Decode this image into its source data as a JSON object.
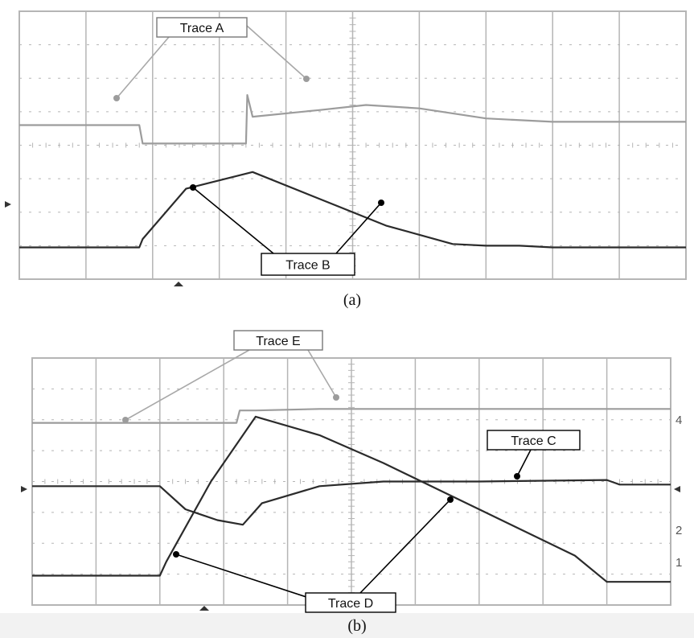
{
  "figure": {
    "caption_a": "(a)",
    "caption_b": "(b)"
  },
  "colors": {
    "grid": "#b5b5b5",
    "dark_trace": "#2b2b2b",
    "light_trace": "#9c9c9c",
    "callout_line": "#000000",
    "light_callout_line": "#a8a8a8"
  },
  "chart_data": [
    {
      "type": "line",
      "panel": "(a)",
      "grid": true,
      "grid_divisions": [
        10,
        8
      ],
      "series": [
        {
          "name": "Trace A",
          "shade": "light",
          "x": [
            0,
            1.8,
            1.85,
            3.4,
            3.42,
            3.5,
            4.5,
            5.2,
            6,
            7,
            8,
            9,
            10
          ],
          "y": [
            4.6,
            4.6,
            4.05,
            4.05,
            5.5,
            4.85,
            5.05,
            5.2,
            5.1,
            4.8,
            4.7,
            4.7,
            4.7
          ]
        },
        {
          "name": "Trace B",
          "shade": "dark",
          "x": [
            0,
            1.8,
            1.85,
            2.5,
            3.5,
            4.5,
            5.5,
            6.5,
            7,
            7.5,
            8,
            10
          ],
          "y": [
            0.95,
            0.95,
            1.2,
            2.7,
            3.2,
            2.4,
            1.6,
            1.05,
            1.0,
            1.0,
            0.95,
            0.95
          ]
        }
      ]
    },
    {
      "type": "line",
      "panel": "(b)",
      "grid": true,
      "grid_divisions": [
        10,
        8
      ],
      "channel_labels": [
        "4",
        "2",
        "1"
      ],
      "series": [
        {
          "name": "Trace E",
          "shade": "light",
          "x": [
            0,
            3.2,
            3.25,
            3.5,
            4.5,
            10
          ],
          "y": [
            5.9,
            5.9,
            6.3,
            6.3,
            6.35,
            6.35
          ]
        },
        {
          "name": "Trace C",
          "shade": "dark",
          "x": [
            0,
            2.0,
            2.4,
            2.9,
            3.3,
            3.6,
            4.5,
            5.5,
            7,
            9,
            9.2,
            10
          ],
          "y": [
            3.85,
            3.85,
            3.1,
            2.75,
            2.6,
            3.3,
            3.85,
            4.0,
            4.0,
            4.05,
            3.9,
            3.9
          ]
        },
        {
          "name": "Trace D",
          "shade": "dark",
          "x": [
            0,
            2.0,
            2.1,
            2.8,
            3.5,
            4.5,
            5.5,
            6.5,
            7.5,
            8.5,
            9,
            10
          ],
          "y": [
            0.95,
            0.95,
            1.4,
            4.0,
            6.1,
            5.5,
            4.6,
            3.6,
            2.6,
            1.6,
            0.75,
            0.75
          ]
        }
      ]
    }
  ]
}
